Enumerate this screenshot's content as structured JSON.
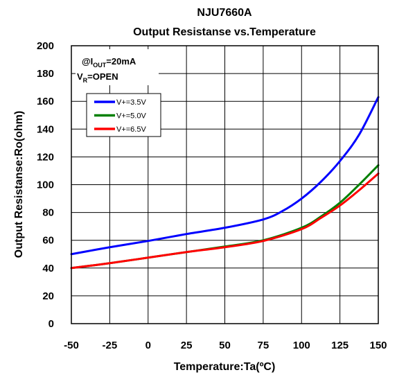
{
  "chart_data": {
    "type": "line",
    "title": "NJU7660A",
    "subtitle": "Output Resistanse vs.Temperature",
    "xlabel": "Temperature:Ta(ºC)",
    "ylabel": "Output Resistanse:Ro(ohm)",
    "xlim": [
      -50,
      150
    ],
    "ylim": [
      0,
      200
    ],
    "xticks": [
      "-50",
      "-25",
      "0",
      "25",
      "50",
      "75",
      "100",
      "125",
      "150"
    ],
    "yticks": [
      "0",
      "20",
      "40",
      "60",
      "80",
      "100",
      "120",
      "140",
      "160",
      "180",
      "200"
    ],
    "grid": true,
    "legend_position": "upper-left",
    "annotations": {
      "condition1_prefix": "@I",
      "condition1_sub": "OUT",
      "condition1_suffix": "=20mA",
      "condition2_prefix": "V",
      "condition2_sub": "R",
      "condition2_suffix": "=OPEN"
    },
    "series": [
      {
        "name": "V+=3.5V",
        "color": "#0000ff",
        "x": [
          -50,
          -25,
          0,
          25,
          50,
          75,
          87.5,
          100,
          112.5,
          125,
          137.5,
          150
        ],
        "y": [
          50,
          55,
          59.5,
          64.5,
          69,
          75,
          81,
          90,
          102,
          117,
          136,
          163
        ]
      },
      {
        "name": "V+=5.0V",
        "color": "#008000",
        "x": [
          -50,
          -25,
          0,
          25,
          50,
          75,
          100,
          112.5,
          125,
          137.5,
          150
        ],
        "y": [
          40,
          43.5,
          47.5,
          51.5,
          55.5,
          60,
          69,
          77,
          87,
          100,
          114
        ]
      },
      {
        "name": "V+=6.5V",
        "color": "#ff0000",
        "x": [
          -50,
          -25,
          0,
          25,
          50,
          75,
          100,
          112.5,
          125,
          137.5,
          150
        ],
        "y": [
          40,
          43.5,
          47.5,
          51.5,
          55,
          59.5,
          68,
          76,
          85,
          96,
          108
        ]
      }
    ]
  }
}
